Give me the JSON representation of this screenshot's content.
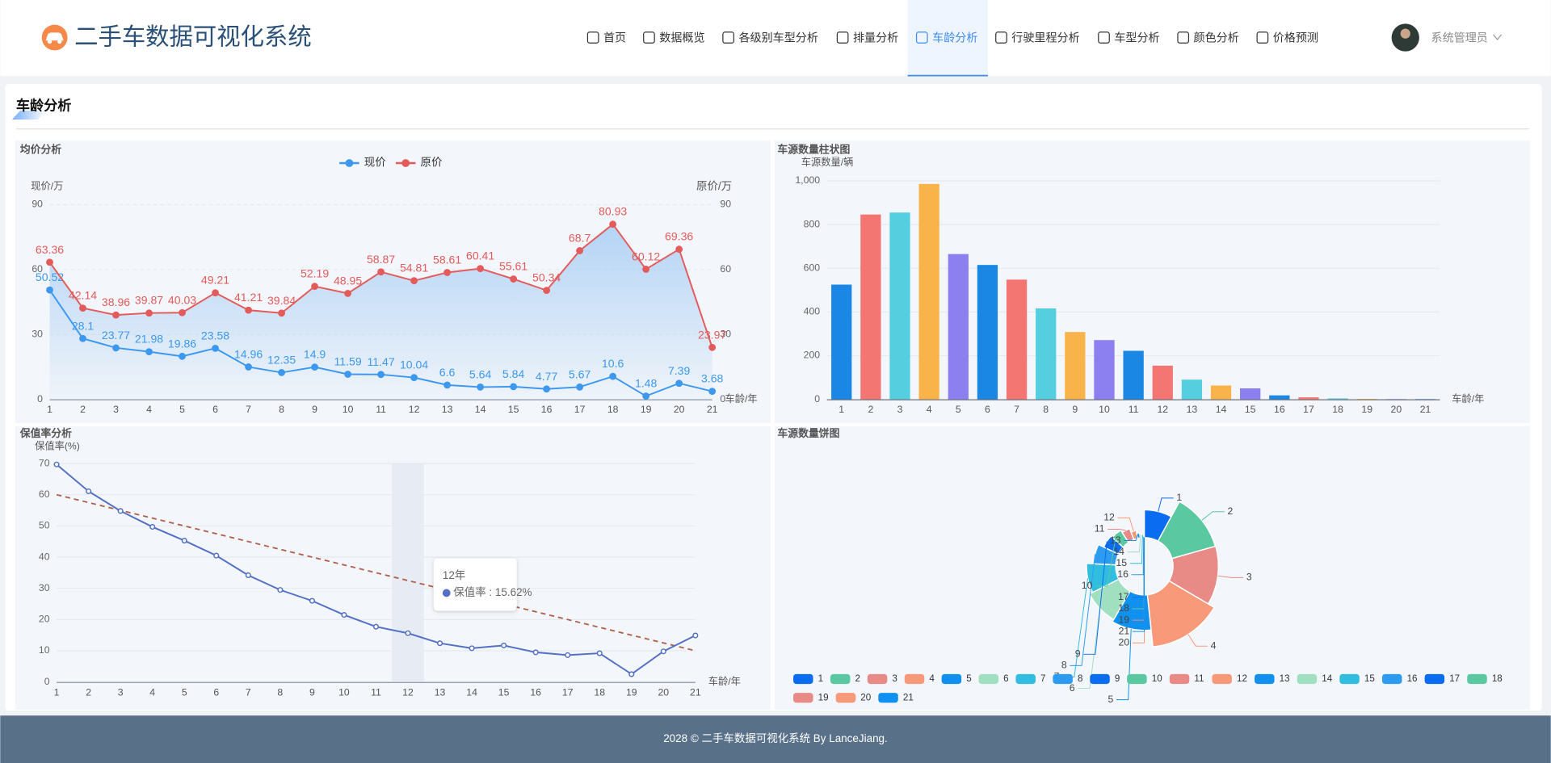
{
  "header": {
    "title": "二手车数据可视化系统",
    "nav": [
      {
        "label": "首页"
      },
      {
        "label": "数据概览"
      },
      {
        "label": "各级别车型分析"
      },
      {
        "label": "排量分析"
      },
      {
        "label": "车龄分析",
        "active": true
      },
      {
        "label": "行驶里程分析"
      },
      {
        "label": "车型分析"
      },
      {
        "label": "颜色分析"
      },
      {
        "label": "价格预测"
      }
    ],
    "user": "系统管理员"
  },
  "page_title": "车龄分析",
  "chart_data": [
    {
      "type": "line",
      "title": "均价分析",
      "x_label": "车龄/年",
      "y_label": "现价/万",
      "y2_label": "原价/万",
      "categories": [
        "1",
        "2",
        "3",
        "4",
        "5",
        "6",
        "7",
        "8",
        "9",
        "10",
        "11",
        "12",
        "13",
        "14",
        "15",
        "16",
        "17",
        "18",
        "19",
        "20",
        "21"
      ],
      "series": [
        {
          "name": "现价",
          "color": "#3d98ef",
          "values": [
            50.52,
            28.1,
            23.77,
            21.98,
            19.86,
            23.58,
            14.96,
            12.35,
            14.9,
            11.59,
            11.47,
            10.04,
            6.6,
            5.64,
            5.84,
            4.77,
            5.67,
            10.6,
            1.48,
            7.39,
            3.68
          ]
        },
        {
          "name": "原价",
          "color": "#e35b5b",
          "axis": "y2",
          "area": "#9fc8f4",
          "values": [
            63.36,
            42.14,
            38.96,
            39.87,
            40.03,
            49.21,
            41.21,
            39.84,
            52.19,
            48.95,
            58.87,
            54.81,
            58.61,
            60.41,
            55.61,
            50.34,
            68.7,
            80.93,
            60.12,
            69.36,
            23.97
          ]
        }
      ],
      "ylim": [
        0,
        90
      ],
      "yticks": [
        0,
        30,
        60,
        90
      ],
      "y2lim": [
        0,
        90
      ],
      "y2ticks": [
        0,
        30,
        60,
        90
      ],
      "grid": true,
      "grid_dash": true,
      "data_labels": true,
      "legend": "top"
    },
    {
      "type": "bar",
      "title": "车源数量柱状图",
      "x_label": "车龄/年",
      "y_label": "车源数量/辆",
      "categories": [
        "1",
        "2",
        "3",
        "4",
        "5",
        "6",
        "7",
        "8",
        "9",
        "10",
        "11",
        "12",
        "13",
        "14",
        "15",
        "16",
        "17",
        "18",
        "19",
        "20",
        "21"
      ],
      "values": [
        525,
        846,
        855,
        986,
        665,
        615,
        548,
        416,
        308,
        271,
        222,
        154,
        90,
        63,
        50,
        18,
        9,
        4,
        2,
        1,
        1
      ],
      "colors": [
        "#1a87e5",
        "#f47673",
        "#55cfe0",
        "#f8b44a",
        "#8c7ff0"
      ],
      "ylim": [
        0,
        1000
      ],
      "yticks": [
        0,
        200,
        400,
        600,
        800,
        {
          "value": 1000,
          "label": "1,000"
        }
      ],
      "grid": true
    },
    {
      "type": "line",
      "title": "保值率分析",
      "x_label": "车龄/年",
      "y_label": "保值率(%)",
      "categories": [
        "1",
        "2",
        "3",
        "4",
        "5",
        "6",
        "7",
        "8",
        "9",
        "10",
        "11",
        "12",
        "13",
        "14",
        "15",
        "16",
        "17",
        "18",
        "19",
        "20",
        "21"
      ],
      "series": [
        {
          "name": "保值率",
          "color": "#5470c6",
          "marker": "hollow",
          "values": [
            69.7,
            61.1,
            54.8,
            49.7,
            45.3,
            40.5,
            34.2,
            29.5,
            26.0,
            21.5,
            17.7,
            15.62,
            12.4,
            10.8,
            11.7,
            9.5,
            8.6,
            9.2,
            2.5,
            9.8,
            14.9
          ]
        }
      ],
      "trend": {
        "color": "#b0604c",
        "values": [
          60,
          10
        ]
      },
      "ylim": [
        0,
        70
      ],
      "yticks": [
        0,
        10,
        20,
        30,
        40,
        50,
        60,
        70
      ],
      "grid": true,
      "tooltip": {
        "category": "12",
        "title": "12年",
        "text": "保值率 : 15.62%"
      }
    },
    {
      "type": "pie",
      "title": "车源数量饼图",
      "rose": true,
      "categories": [
        "1",
        "2",
        "3",
        "4",
        "5",
        "6",
        "7",
        "8",
        "9",
        "10",
        "11",
        "12",
        "13",
        "14",
        "15",
        "16",
        "17",
        "18",
        "19",
        "20",
        "21"
      ],
      "values": [
        525,
        846,
        855,
        986,
        665,
        615,
        548,
        416,
        308,
        271,
        222,
        154,
        90,
        63,
        50,
        18,
        9,
        4,
        2,
        1,
        1
      ],
      "colors": [
        "#0a6cf0",
        "#5ac8a0",
        "#e88a86",
        "#f8997a",
        "#1091f0",
        "#a0e0c0",
        "#30bde0",
        "#2d9cf0"
      ],
      "legend": "bottom"
    }
  ],
  "footer": "2028 © 二手车数据可视化系统 By LanceJiang."
}
